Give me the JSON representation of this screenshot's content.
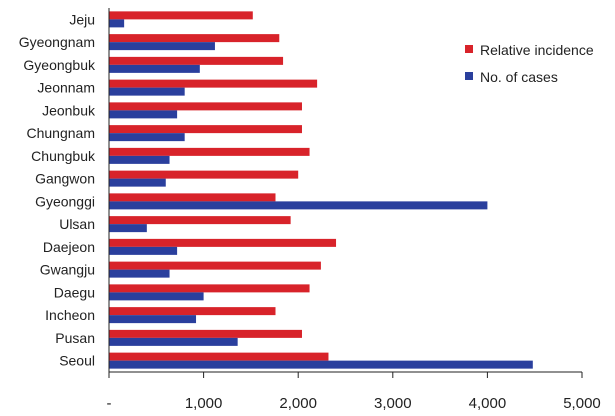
{
  "chart_data": {
    "type": "bar",
    "orientation": "horizontal",
    "categories": [
      "Jeju",
      "Gyeongnam",
      "Gyeongbuk",
      "Jeonnam",
      "Jeonbuk",
      "Chungnam",
      "Chungbuk",
      "Gangwon",
      "Gyeonggi",
      "Ulsan",
      "Daejeon",
      "Gwangju",
      "Daegu",
      "Incheon",
      "Pusan",
      "Seoul"
    ],
    "series": [
      {
        "name": "Relative incidence",
        "color": "#d8232a",
        "values": [
          1520,
          1800,
          1840,
          2200,
          2040,
          2040,
          2120,
          2000,
          1760,
          1920,
          2400,
          2240,
          2120,
          1760,
          2040,
          2320
        ]
      },
      {
        "name": "No. of cases",
        "color": "#2a3f9d",
        "values": [
          160,
          1120,
          960,
          800,
          720,
          800,
          640,
          600,
          4000,
          400,
          720,
          640,
          1000,
          920,
          1360,
          4480
        ]
      }
    ],
    "xlim": [
      0,
      5000
    ],
    "xticks": [
      "-",
      "1,000",
      "2,000",
      "3,000",
      "4,000",
      "5,000"
    ],
    "legend": "top-right"
  }
}
